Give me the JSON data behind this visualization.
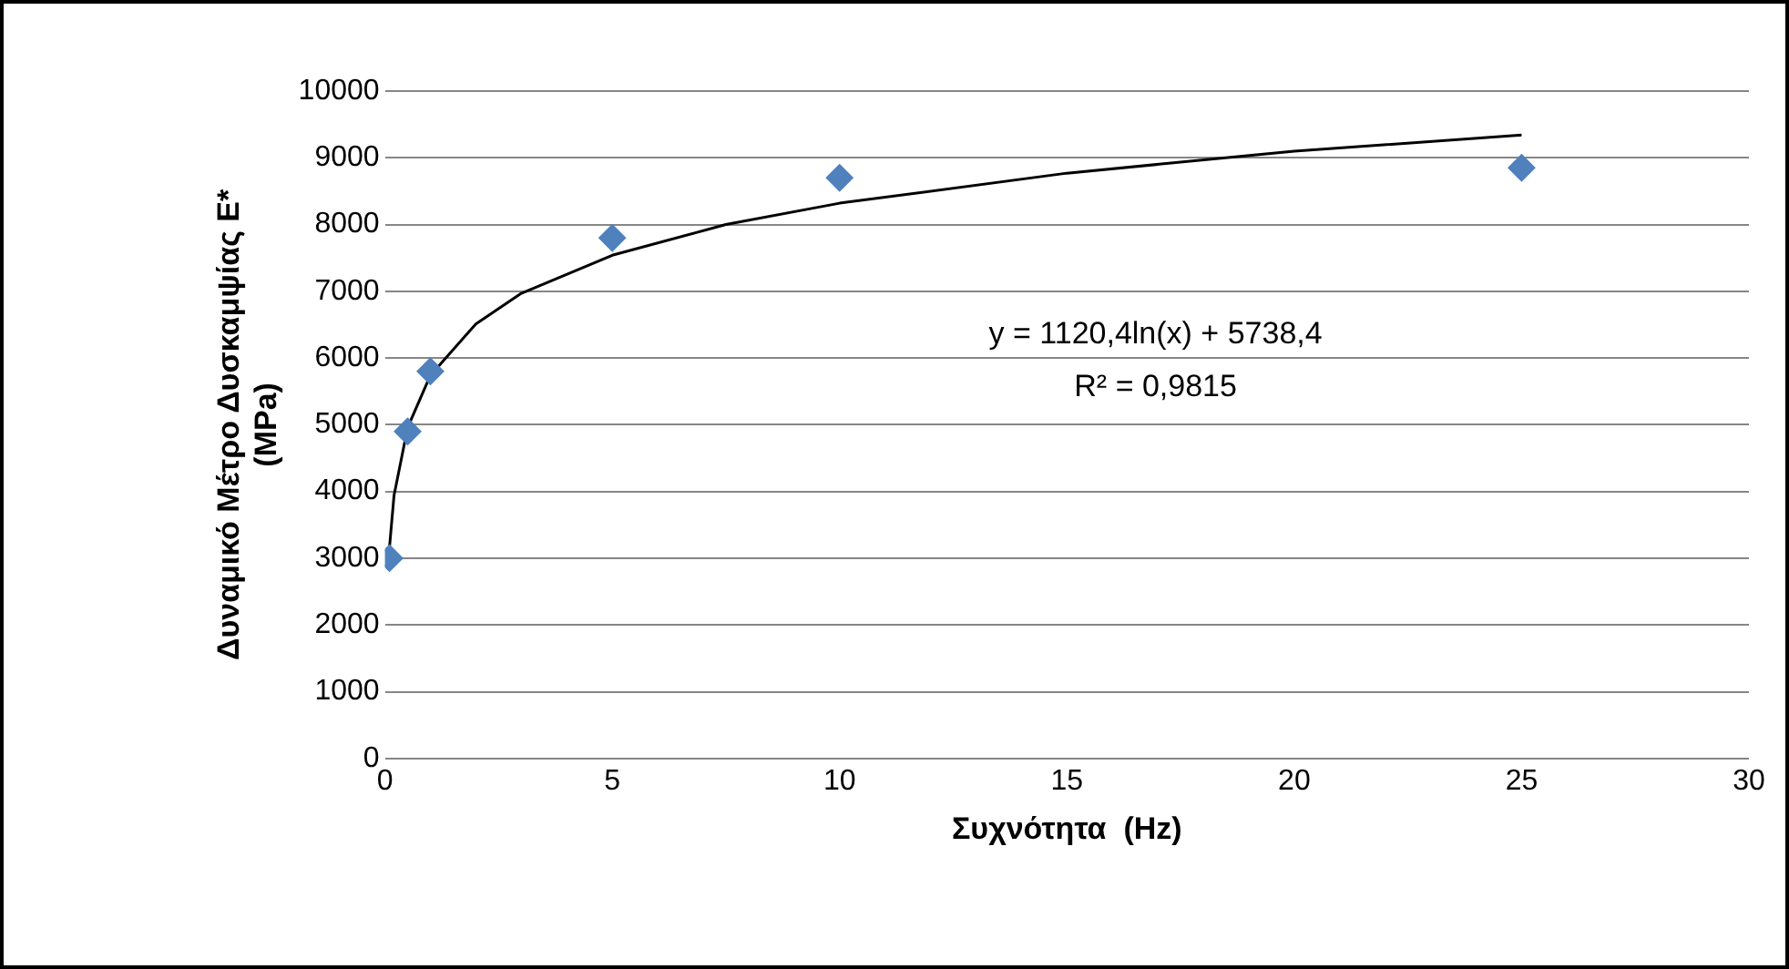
{
  "chart_data": {
    "type": "scatter",
    "xlabel": "Συχνότητα  (Hz)",
    "ylabel": "Δυναμικό Μέτρο Δυσκαμψίας Ε*\n(MPa)",
    "xlim": [
      0,
      30
    ],
    "xticks": [
      0,
      5,
      10,
      15,
      20,
      25,
      30
    ],
    "ylim": [
      0,
      10000
    ],
    "yticks": [
      0,
      1000,
      2000,
      3000,
      4000,
      5000,
      6000,
      7000,
      8000,
      9000,
      10000
    ],
    "grid": "y",
    "legend": false,
    "marker": "diamond",
    "series": [
      {
        "type": "scatter",
        "color": "#4f81bd",
        "x": [
          0.1,
          0.5,
          1,
          5,
          10,
          25
        ],
        "values": [
          3000,
          4900,
          5800,
          7800,
          8700,
          8850
        ]
      },
      {
        "type": "line",
        "color": "#000000",
        "marker": "none",
        "line_style": "solid",
        "x": [
          0.1,
          0.2,
          0.5,
          1,
          2,
          3,
          5,
          7.5,
          10,
          15,
          20,
          25
        ],
        "values": [
          3160,
          3940,
          4960,
          5740,
          6510,
          6970,
          7540,
          8000,
          8320,
          8770,
          9100,
          9340
        ]
      }
    ],
    "annotations": [
      "y = 1120,4ln(x) + 5738,4",
      "R² = 0,9815"
    ]
  }
}
